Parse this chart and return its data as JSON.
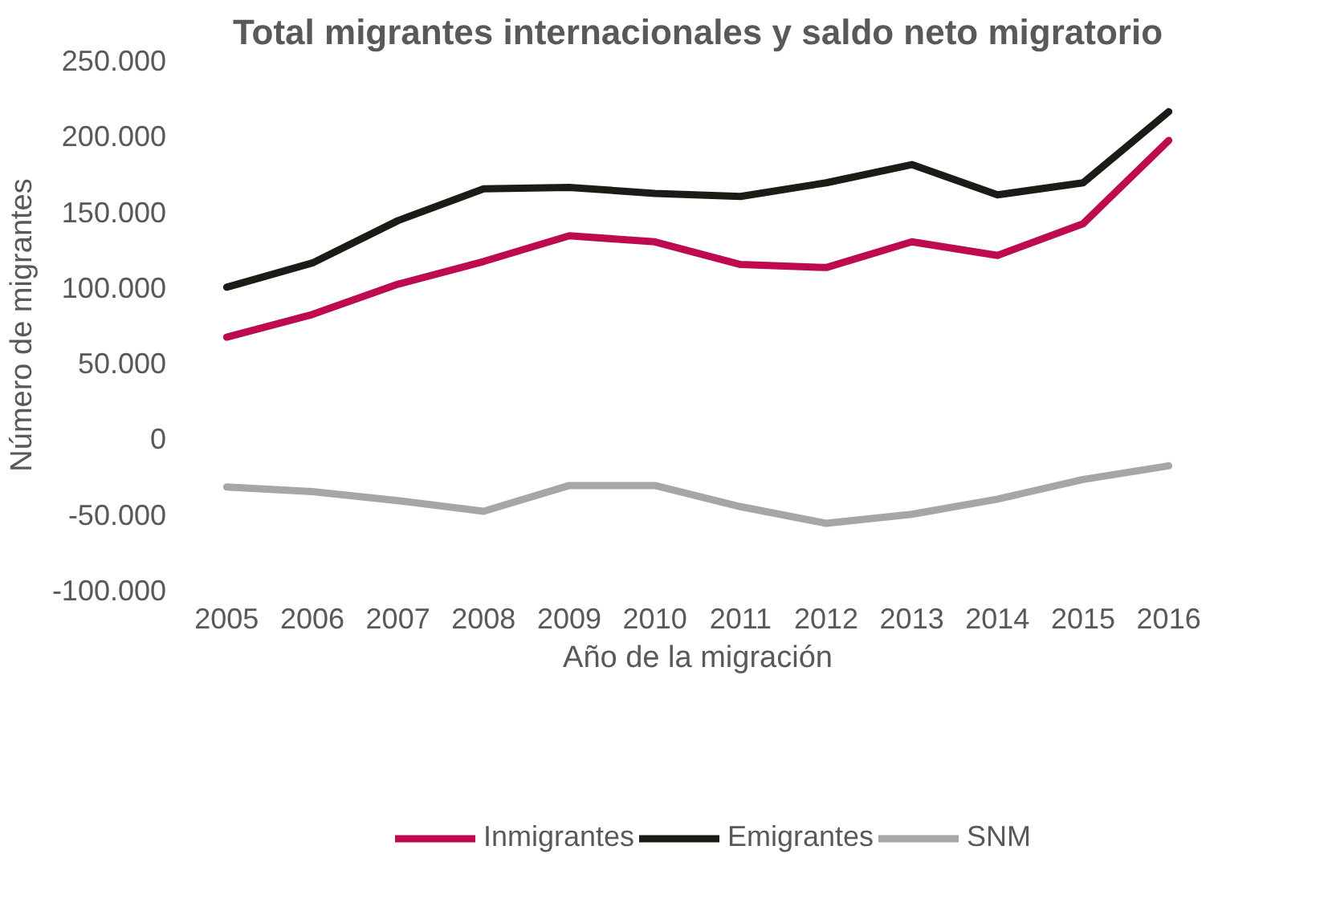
{
  "chart_data": {
    "type": "line",
    "title": "Total migrantes internacionales y saldo neto migratorio",
    "xlabel": "Año de la migración",
    "ylabel": "Número de migrantes",
    "categories": [
      "2005",
      "2006",
      "2007",
      "2008",
      "2009",
      "2010",
      "2011",
      "2012",
      "2013",
      "2014",
      "2015",
      "2016"
    ],
    "series": [
      {
        "name": "Inmigrantes",
        "color": "#be0a4f",
        "values": [
          67000,
          82000,
          102000,
          117000,
          134000,
          130000,
          115000,
          113000,
          130000,
          121000,
          142000,
          197000
        ]
      },
      {
        "name": "Emigrantes",
        "color": "#1c1c16",
        "values": [
          100000,
          116000,
          144000,
          165000,
          166000,
          162000,
          160000,
          169000,
          181000,
          161000,
          169000,
          216000
        ]
      },
      {
        "name": "SNM",
        "color": "#a6a6a6",
        "values": [
          -32000,
          -35000,
          -41000,
          -48000,
          -31000,
          -31000,
          -45000,
          -56000,
          -50000,
          -40000,
          -27000,
          -18000
        ]
      }
    ],
    "ylim": [
      -100000,
      250000
    ],
    "yticks": [
      {
        "value": -100000,
        "label": "-100.000"
      },
      {
        "value": -50000,
        "label": "-50.000"
      },
      {
        "value": 0,
        "label": "0"
      },
      {
        "value": 50000,
        "label": "50.000"
      },
      {
        "value": 100000,
        "label": "100.000"
      },
      {
        "value": 150000,
        "label": "150.000"
      },
      {
        "value": 200000,
        "label": "200.000"
      },
      {
        "value": 250000,
        "label": "250.000"
      }
    ],
    "grid": false,
    "legend": "bottom",
    "marker": "none",
    "line_style": "solid"
  }
}
